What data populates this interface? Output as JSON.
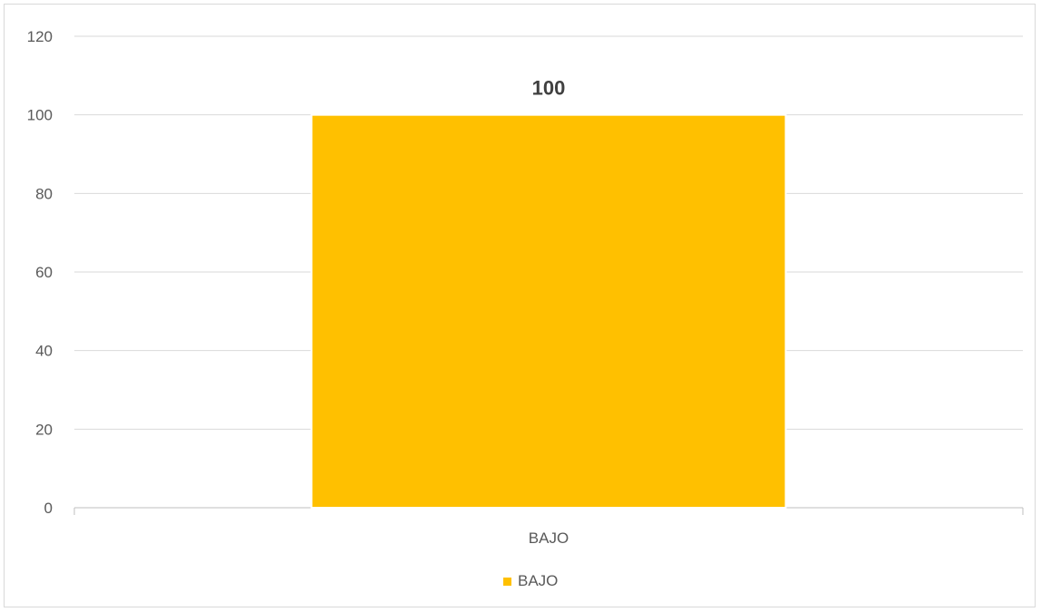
{
  "chart_data": {
    "type": "bar",
    "categories": [
      "BAJO"
    ],
    "series": [
      {
        "name": "BAJO",
        "values": [
          100
        ],
        "color": "#FFC000"
      }
    ],
    "ylim": [
      0,
      120
    ],
    "yticks": [
      0,
      20,
      40,
      60,
      80,
      100,
      120
    ],
    "grid": true,
    "legend_position": "bottom",
    "title": "",
    "xlabel": "",
    "ylabel": "",
    "data_labels": [
      "100"
    ],
    "gridline_color": "#d9d9d9"
  }
}
